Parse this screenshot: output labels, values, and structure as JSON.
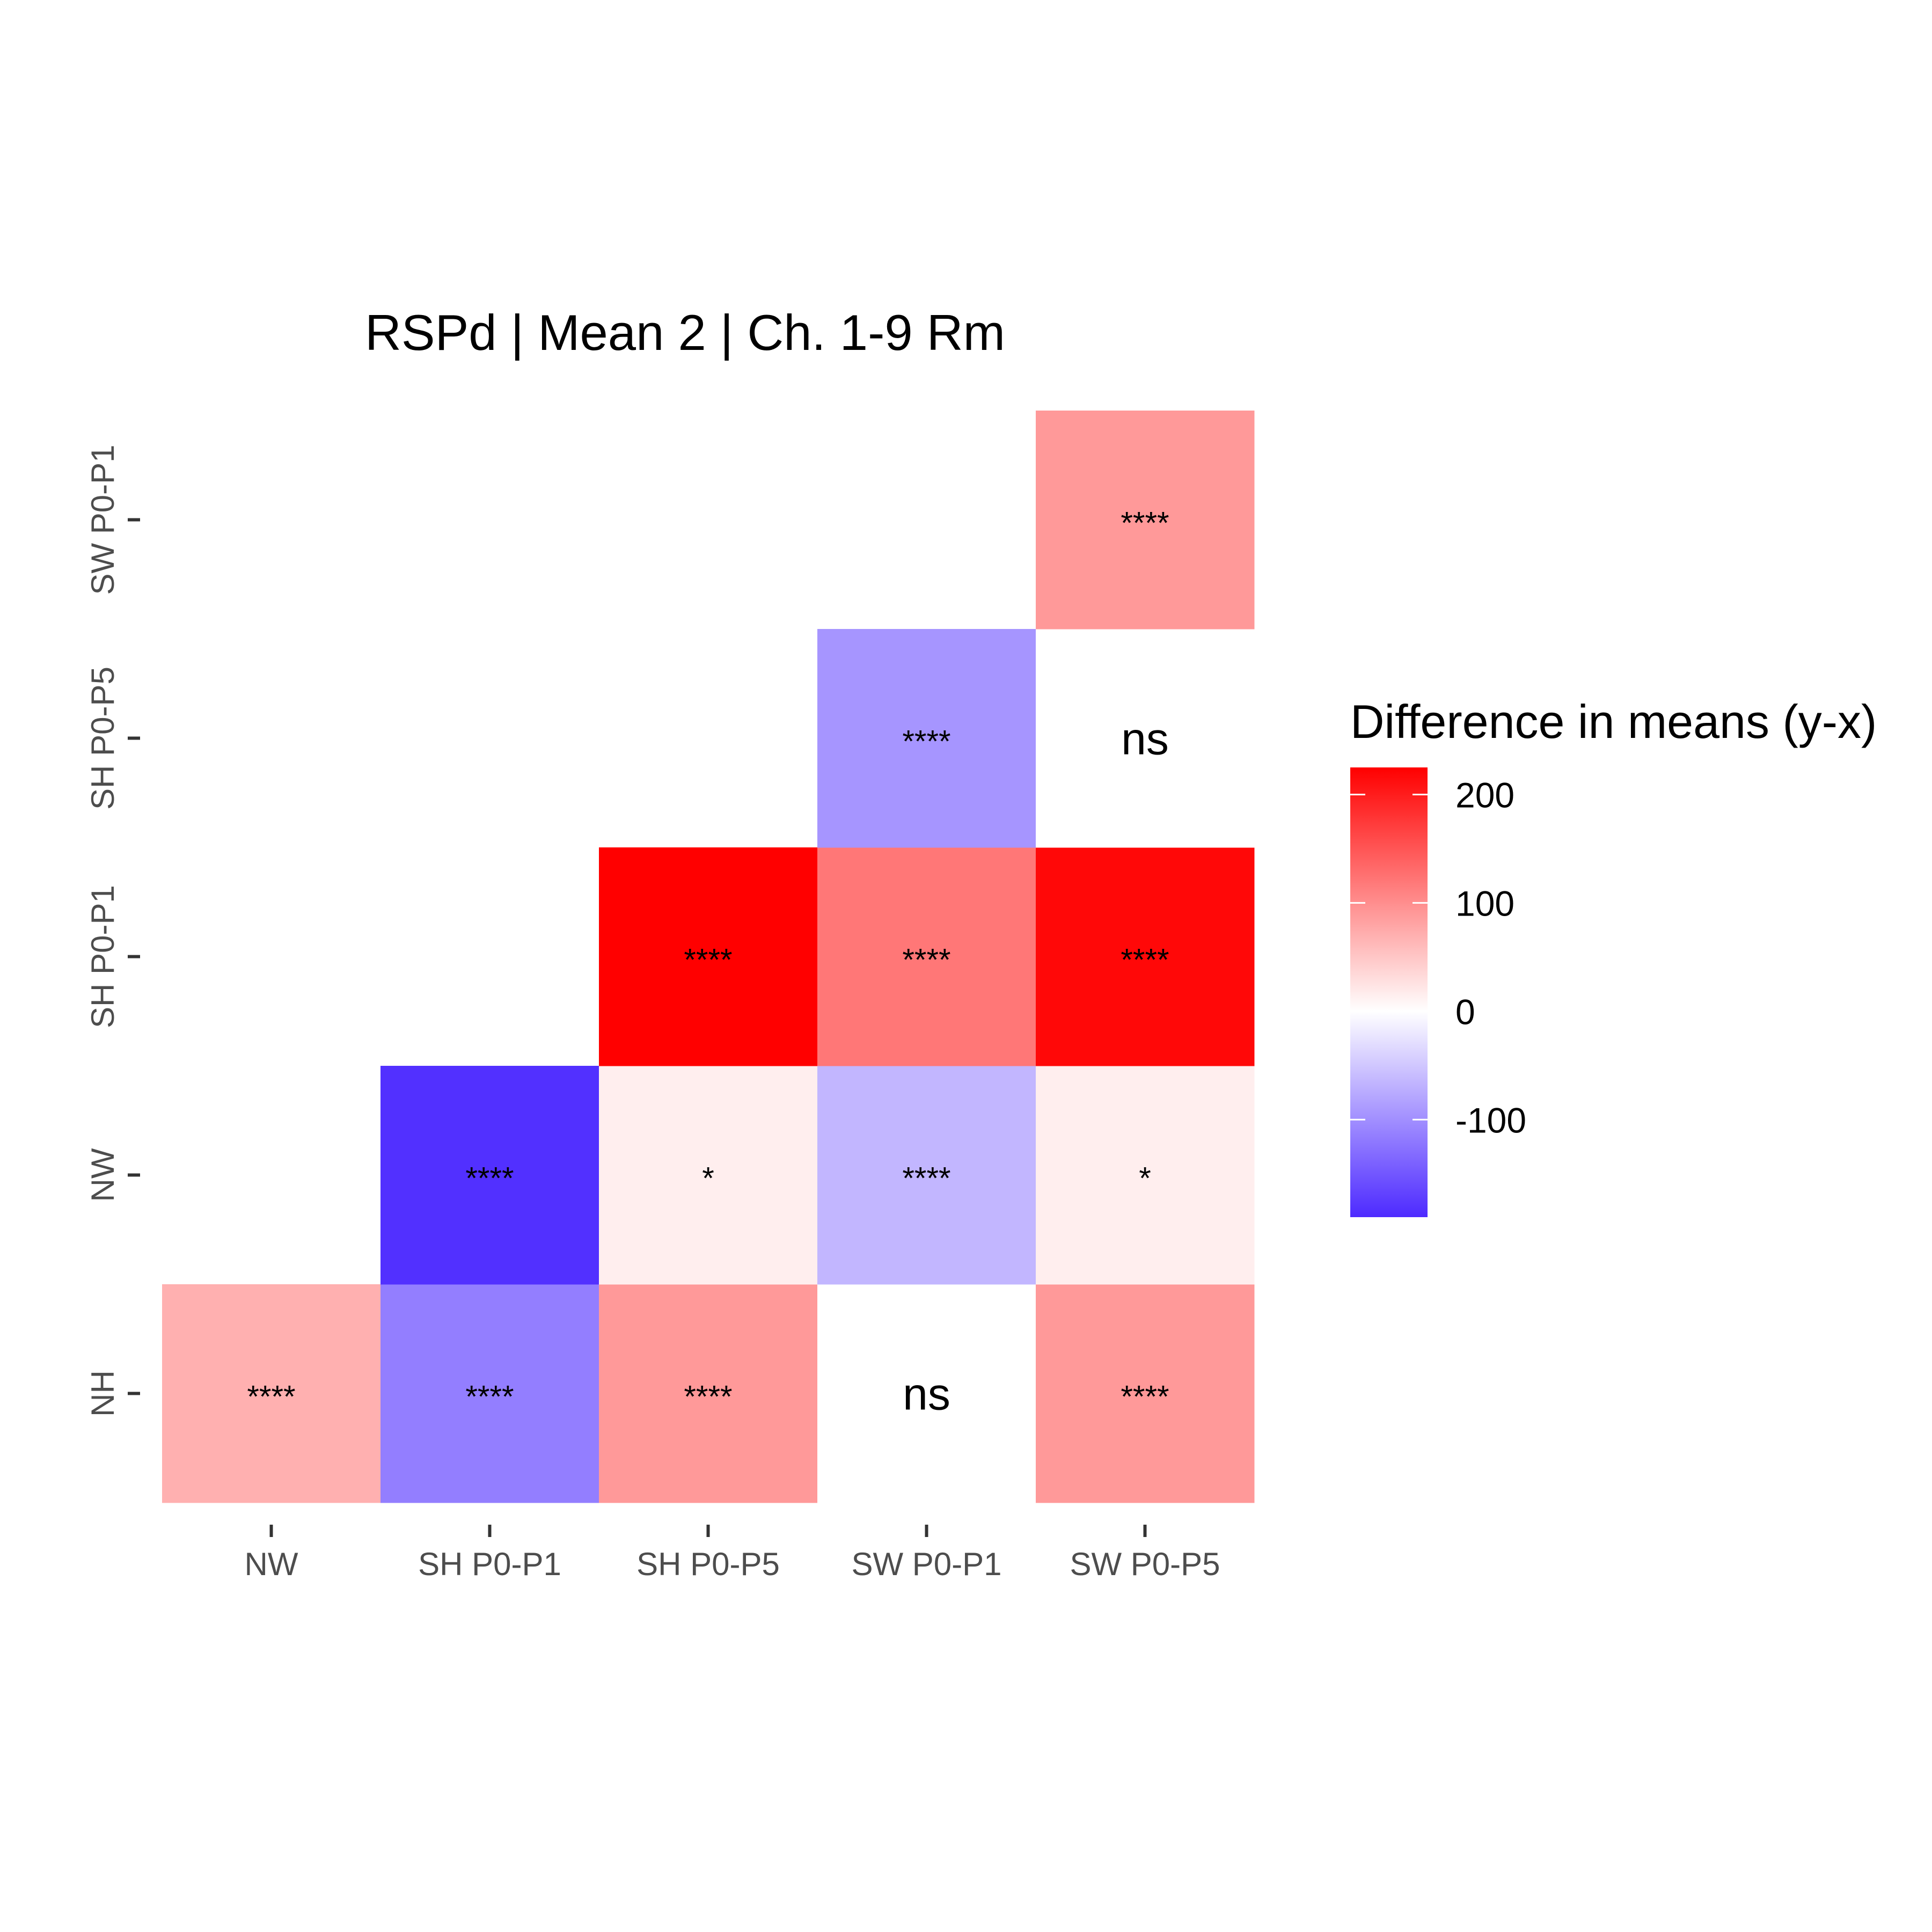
{
  "chart_data": {
    "type": "heatmap",
    "title": "RSPd | Mean 2 | Ch. 1-9 Rm",
    "x_categories": [
      "NW",
      "SH P0-P1",
      "SH P0-P5",
      "SW P0-P1",
      "SW P0-P5"
    ],
    "y_categories": [
      "NH",
      "NW",
      "SH P0-P1",
      "SH P0-P5",
      "SW P0-P1"
    ],
    "cells": [
      {
        "x": "NW",
        "y": "NH",
        "value": 70,
        "label": "****"
      },
      {
        "x": "SH P0-P1",
        "y": "NH",
        "value": -115,
        "label": "****"
      },
      {
        "x": "SH P0-P5",
        "y": "NH",
        "value": 90,
        "label": "****"
      },
      {
        "x": "SW P0-P1",
        "y": "NH",
        "value": 0,
        "label": "ns"
      },
      {
        "x": "SW P0-P5",
        "y": "NH",
        "value": 90,
        "label": "****"
      },
      {
        "x": "SH P0-P1",
        "y": "NW",
        "value": -185,
        "label": "****"
      },
      {
        "x": "SH P0-P5",
        "y": "NW",
        "value": 15,
        "label": "*"
      },
      {
        "x": "SW P0-P1",
        "y": "NW",
        "value": -65,
        "label": "****"
      },
      {
        "x": "SW P0-P5",
        "y": "NW",
        "value": 15,
        "label": "*"
      },
      {
        "x": "SH P0-P5",
        "y": "SH P0-P1",
        "value": 225,
        "label": "****"
      },
      {
        "x": "SW P0-P1",
        "y": "SH P0-P1",
        "value": 120,
        "label": "****"
      },
      {
        "x": "SW P0-P5",
        "y": "SH P0-P1",
        "value": 218,
        "label": "****"
      },
      {
        "x": "SW P0-P1",
        "y": "SH P0-P5",
        "value": -95,
        "label": "****"
      },
      {
        "x": "SW P0-P5",
        "y": "SH P0-P5",
        "value": 0,
        "label": "ns"
      },
      {
        "x": "SW P0-P5",
        "y": "SW P0-P1",
        "value": 90,
        "label": "****"
      }
    ],
    "legend": {
      "title": "Difference in means (y-x)",
      "position": "right",
      "range": [
        -190,
        225
      ],
      "breaks": [
        200,
        100,
        0,
        -100
      ],
      "break_labels": [
        "200",
        "100",
        "0",
        "-100"
      ]
    },
    "colors": {
      "low": "#4d2aff",
      "mid": "#ffffff",
      "high": "#ff0000"
    },
    "grid": false
  }
}
